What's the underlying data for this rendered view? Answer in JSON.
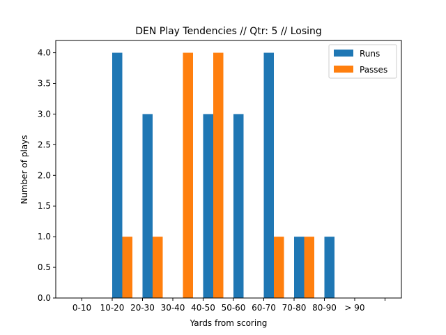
{
  "chart_data": {
    "type": "bar",
    "title": "DEN Play Tendencies // Qtr: 5 // Losing",
    "xlabel": "Yards from scoring",
    "ylabel": "Number of plays",
    "categories": [
      "0-10",
      "10-20",
      "20-30",
      "30-40",
      "40-50",
      "50-60",
      "60-70",
      "70-80",
      "80-90",
      "> 90"
    ],
    "series": [
      {
        "name": "Runs",
        "color": "#1f77b4",
        "values": [
          0,
          4,
          3,
          0,
          3,
          3,
          4,
          1,
          1,
          0
        ]
      },
      {
        "name": "Passes",
        "color": "#ff7f0e",
        "values": [
          0,
          1,
          1,
          4,
          4,
          0,
          1,
          1,
          0,
          0
        ]
      }
    ],
    "ylim": [
      0,
      4.2
    ],
    "yticks": [
      "0.0",
      "0.5",
      "1.0",
      "1.5",
      "2.0",
      "2.5",
      "3.0",
      "3.5",
      "4.0"
    ],
    "legend_position": "top-right",
    "grid": false
  }
}
